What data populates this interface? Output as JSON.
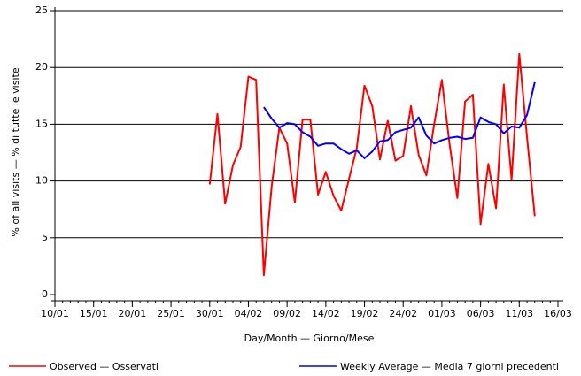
{
  "chart_data": {
    "type": "line",
    "y_label": "% of all visits — % di tutte le visite",
    "x_label": "Day/Month — Giorno/Mese",
    "x": [
      "10/01",
      "11/01",
      "12/01",
      "13/01",
      "14/01",
      "15/01",
      "16/01",
      "17/01",
      "18/01",
      "19/01",
      "20/01",
      "21/01",
      "22/01",
      "23/01",
      "24/01",
      "25/01",
      "26/01",
      "27/01",
      "28/01",
      "29/01",
      "30/01",
      "31/01",
      "01/02",
      "02/02",
      "03/02",
      "04/02",
      "05/02",
      "06/02",
      "07/02",
      "08/02",
      "09/02",
      "10/02",
      "11/02",
      "12/02",
      "13/02",
      "14/02",
      "15/02",
      "16/02",
      "17/02",
      "18/02",
      "19/02",
      "20/02",
      "21/02",
      "22/02",
      "23/02",
      "24/02",
      "25/02",
      "26/02",
      "27/02",
      "28/02",
      "01/03",
      "02/03",
      "03/03",
      "04/03",
      "05/03",
      "06/03",
      "07/03",
      "08/03",
      "09/03",
      "10/03",
      "11/03",
      "12/03",
      "13/03",
      "14/03",
      "15/03",
      "16/03"
    ],
    "xticks": [
      "10/01",
      "15/01",
      "20/01",
      "25/01",
      "30/01",
      "04/02",
      "09/02",
      "14/02",
      "19/02",
      "24/02",
      "01/03",
      "06/03",
      "11/03",
      "16/03"
    ],
    "ylim": [
      0,
      25
    ],
    "yticks": [
      0,
      5,
      10,
      15,
      20,
      25
    ],
    "grid": true,
    "series": [
      {
        "name": "Observed — Osservati",
        "color": "#ff0000",
        "values": [
          null,
          null,
          null,
          null,
          null,
          null,
          null,
          null,
          null,
          null,
          null,
          null,
          null,
          null,
          null,
          null,
          null,
          null,
          null,
          null,
          9.7,
          15.9,
          8.0,
          11.4,
          13.0,
          19.2,
          18.9,
          1.7,
          9.5,
          14.7,
          13.3,
          8.1,
          15.4,
          15.4,
          8.8,
          10.8,
          8.7,
          7.4,
          10.2,
          12.9,
          18.4,
          16.6,
          11.9,
          15.3,
          11.8,
          12.2,
          16.6,
          12.3,
          10.5,
          15.0,
          18.9,
          13.2,
          8.5,
          17.0,
          17.6,
          6.2,
          11.5,
          7.6,
          18.5,
          10.1,
          21.2,
          13.9,
          6.9,
          null,
          null,
          null
        ]
      },
      {
        "name": "Weekly Average — Media 7 giorni precedenti",
        "color": "#0000ff",
        "values": [
          null,
          null,
          null,
          null,
          null,
          null,
          null,
          null,
          null,
          null,
          null,
          null,
          null,
          null,
          null,
          null,
          null,
          null,
          null,
          null,
          null,
          null,
          null,
          null,
          null,
          null,
          null,
          16.5,
          15.5,
          14.7,
          15.1,
          15.0,
          14.3,
          13.9,
          13.1,
          13.3,
          13.3,
          12.8,
          12.4,
          12.7,
          12.0,
          12.6,
          13.5,
          13.6,
          14.3,
          14.5,
          14.7,
          15.6,
          14.0,
          13.3,
          13.6,
          13.8,
          13.9,
          13.7,
          13.8,
          15.6,
          15.2,
          15.0,
          14.2,
          14.8,
          14.7,
          15.8,
          18.7,
          null,
          null,
          null
        ]
      }
    ]
  }
}
